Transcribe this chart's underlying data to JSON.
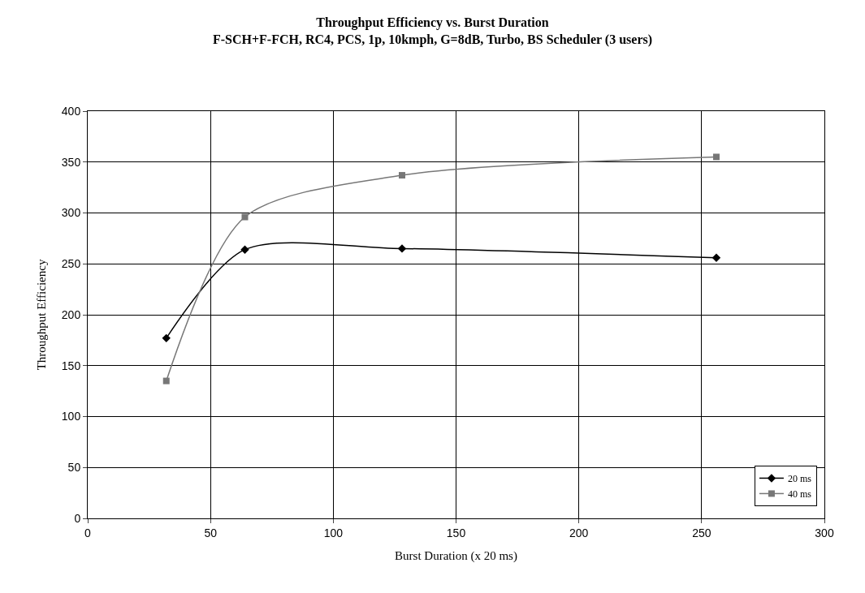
{
  "chart_data": {
    "type": "line",
    "title": "Throughput Efficiency vs. Burst Duration",
    "subtitle": "F-SCH+F-FCH, RC4, PCS, 1p, 10kmph, G=8dB, Turbo, BS Scheduler (3 users)",
    "xlabel": "Burst Duration (x 20 ms)",
    "ylabel": "Throughput Efficiency",
    "x": [
      32,
      64,
      128,
      256
    ],
    "series": [
      {
        "name": "20 ms",
        "color": "#000000",
        "marker": "diamond",
        "values": [
          177,
          264,
          265,
          256
        ]
      },
      {
        "name": "40 ms",
        "color": "#777777",
        "marker": "square",
        "values": [
          135,
          296,
          337,
          355
        ]
      }
    ],
    "xlim": [
      0,
      300
    ],
    "xticks": [
      0,
      50,
      100,
      150,
      200,
      250,
      300
    ],
    "ylim": [
      0,
      400
    ],
    "yticks": [
      0,
      50,
      100,
      150,
      200,
      250,
      300,
      350,
      400
    ],
    "grid": true,
    "legend": "bottom right",
    "line_style": "solid"
  }
}
